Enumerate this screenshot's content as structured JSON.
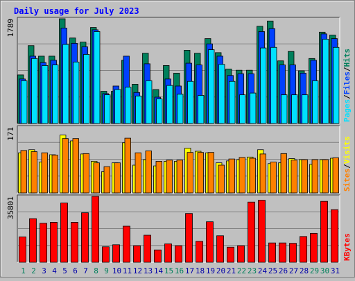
{
  "chart_data": {
    "type": "bar",
    "title": "Daily usage for July 2023",
    "categories": [
      "1",
      "2",
      "3",
      "4",
      "5",
      "6",
      "7",
      "8",
      "9",
      "10",
      "11",
      "12",
      "13",
      "14",
      "15",
      "16",
      "17",
      "18",
      "19",
      "20",
      "21",
      "22",
      "23",
      "24",
      "25",
      "26",
      "27",
      "28",
      "29",
      "30",
      "31"
    ],
    "weekend_days": [
      "1",
      "2",
      "8",
      "9",
      "15",
      "16",
      "22",
      "23",
      "29",
      "30"
    ],
    "panels": [
      {
        "id": "hits_files_pages",
        "ymax_label": "1789",
        "ylim": [
          0,
          1789
        ],
        "legend": [
          "Pages",
          "Files",
          "Hits"
        ],
        "series": [
          {
            "name": "Hits",
            "color": "#00805c",
            "values": [
              830,
              1330,
              1150,
              1150,
              1789,
              1460,
              1390,
              1640,
              550,
              550,
              1080,
              670,
              1200,
              580,
              990,
              860,
              1250,
              1200,
              1450,
              1210,
              930,
              910,
              910,
              1660,
              1750,
              1070,
              1230,
              900,
              1110,
              1560,
              1510
            ]
          },
          {
            "name": "Files",
            "color": "#0040ff",
            "values": [
              760,
              1150,
              1040,
              1080,
              1630,
              1370,
              1310,
              1600,
              510,
              640,
              1150,
              530,
              1020,
              450,
              760,
              640,
              1030,
              1000,
              1360,
              1150,
              820,
              850,
              850,
              1570,
              1620,
              1000,
              1000,
              860,
              1080,
              1530,
              1450
            ]
          },
          {
            "name": "Pages",
            "color": "#00e0ff",
            "values": [
              730,
              1110,
              990,
              1000,
              1350,
              1050,
              1180,
              1570,
              490,
              580,
              620,
              470,
              730,
              420,
              650,
              500,
              720,
              480,
              1260,
              1010,
              720,
              490,
              520,
              1290,
              1300,
              490,
              490,
              490,
              730,
              1440,
              1300
            ]
          }
        ]
      },
      {
        "id": "visits_sites",
        "ymax_label": "171",
        "ylim": [
          0,
          171
        ],
        "legend": [
          "Sites",
          "Visits"
        ],
        "series": [
          {
            "name": "Visits",
            "color": "#ffff00",
            "values": [
              104,
              112,
              80,
              99,
              150,
              135,
              101,
              82,
              55,
              78,
              130,
              72,
              86,
              70,
              82,
              82,
              116,
              108,
              104,
              78,
              83,
              86,
              93,
              112,
              76,
              78,
              89,
              86,
              74,
              86,
              90
            ]
          },
          {
            "name": "Sites",
            "color": "#ff8000",
            "values": [
              110,
              107,
              104,
              98,
              141,
              141,
              102,
              78,
              68,
              78,
              142,
              104,
              109,
              82,
              85,
              85,
              105,
              105,
              105,
              72,
              88,
              92,
              90,
              101,
              80,
              102,
              85,
              86,
              86,
              86,
              91
            ]
          }
        ]
      },
      {
        "id": "kbytes",
        "ymax_label": "35801",
        "ylim": [
          0,
          35801
        ],
        "legend": [
          "KBytes"
        ],
        "series": [
          {
            "name": "KBytes",
            "color": "#ff0000",
            "values": [
              13800,
              23700,
              21200,
              21700,
              32200,
              21700,
              26900,
              35800,
              8400,
              9500,
              19600,
              9000,
              14700,
              6700,
              10000,
              9000,
              26500,
              11400,
              22000,
              14400,
              8200,
              9000,
              32700,
              33700,
              10500,
              10500,
              10300,
              14000,
              15700,
              33100,
              28600
            ]
          }
        ]
      }
    ]
  },
  "colors": {
    "background": "#c0c0c0",
    "title": "#0000ff",
    "weekday_label": "#0000aa",
    "weekend_label": "#00805c",
    "grid": "#808080"
  }
}
